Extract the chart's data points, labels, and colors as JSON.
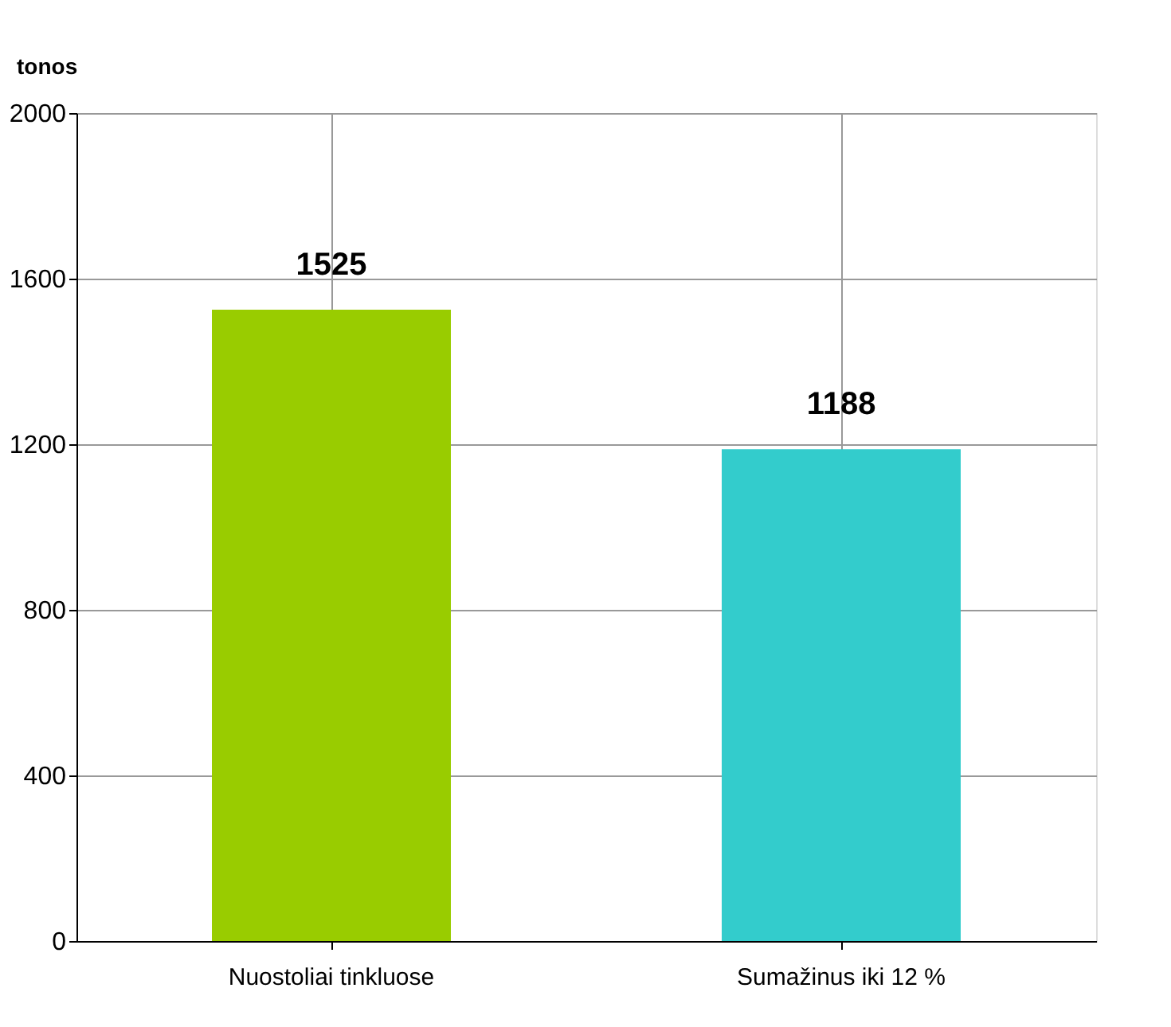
{
  "chart_data": {
    "type": "bar",
    "ylabel": "tonos",
    "categories": [
      "Nuostoliai tinkluose",
      "Sumažinus iki 12 %"
    ],
    "values": [
      1525,
      1188
    ],
    "colors": [
      "#99cc00",
      "#33cccc"
    ],
    "ylim": [
      0,
      2000
    ],
    "yticks": [
      0,
      400,
      800,
      1200,
      1600,
      2000
    ],
    "grid": true,
    "data_labels": true
  }
}
